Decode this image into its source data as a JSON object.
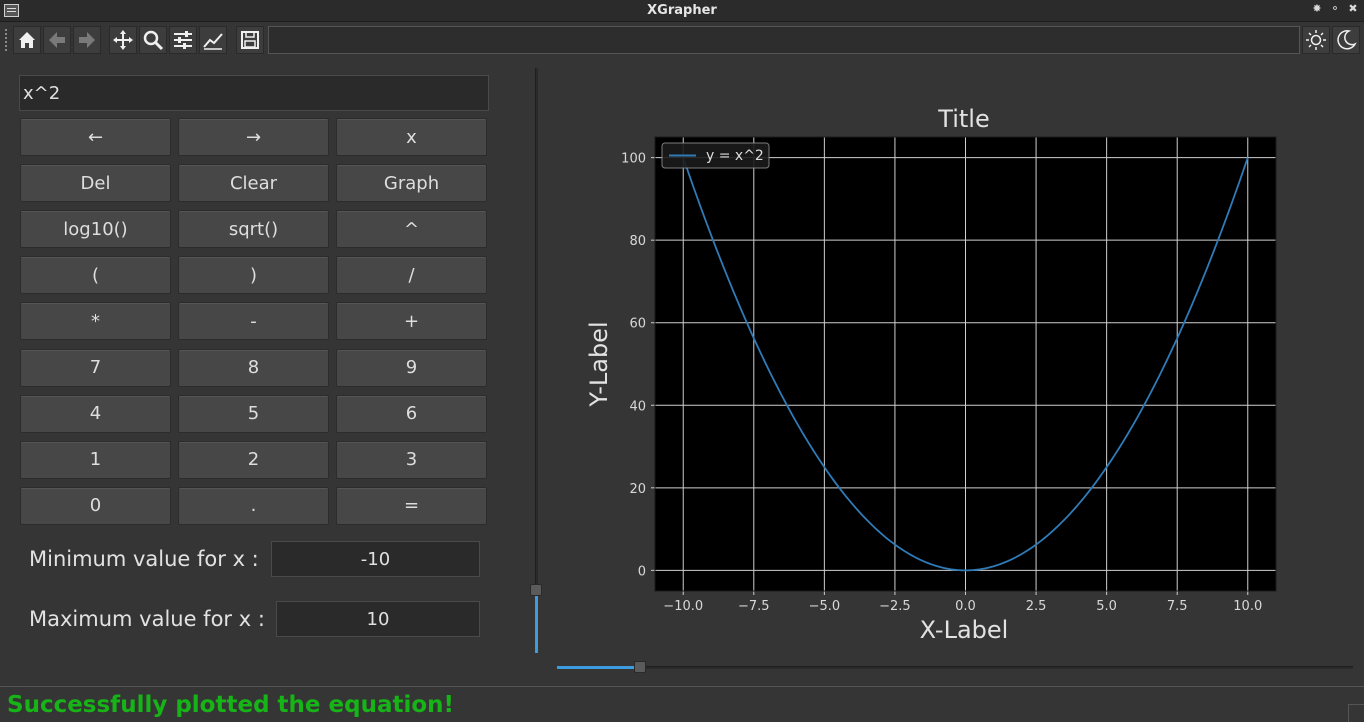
{
  "window": {
    "title": "XGrapher",
    "controls": [
      "✸",
      "⚬",
      "✖"
    ]
  },
  "toolbar": {
    "buttons": [
      {
        "name": "home-icon"
      },
      {
        "name": "back-arrow-icon"
      },
      {
        "name": "forward-arrow-icon"
      },
      {
        "name": "pan-icon"
      },
      {
        "name": "zoom-icon"
      },
      {
        "name": "subplots-config-icon"
      },
      {
        "name": "edit-axes-icon"
      },
      {
        "name": "save-icon"
      }
    ],
    "message": "",
    "theme_buttons": [
      {
        "name": "light-theme-icon"
      },
      {
        "name": "dark-theme-icon"
      }
    ]
  },
  "calculator": {
    "expression": "x^2",
    "keys": [
      "←",
      "→",
      "x",
      "Del",
      "Clear",
      "Graph",
      "log10()",
      "sqrt()",
      "^",
      "(",
      ")",
      "/",
      "*",
      "-",
      "+",
      "7",
      "8",
      "9",
      "4",
      "5",
      "6",
      "1",
      "2",
      "3",
      "0",
      ".",
      "="
    ]
  },
  "range": {
    "min_label": "Minimum value for x :",
    "min_value": "-10",
    "max_label": "Maximum value for x :",
    "max_value": "10"
  },
  "sliders": {
    "vertical_level": 0.11,
    "horizontal_level": 0.1
  },
  "chart_data": {
    "type": "line",
    "title": "Title",
    "xlabel": "X-Label",
    "ylabel": "Y-Label",
    "xlim": [
      -11,
      11
    ],
    "ylim": [
      -5,
      105
    ],
    "xticks": [
      -10.0,
      -7.5,
      -5.0,
      -2.5,
      0.0,
      2.5,
      5.0,
      7.5,
      10.0
    ],
    "xtick_labels": [
      "−10.0",
      "−7.5",
      "−5.0",
      "−2.5",
      "0.0",
      "2.5",
      "5.0",
      "7.5",
      "10.0"
    ],
    "yticks": [
      0,
      20,
      40,
      60,
      80,
      100
    ],
    "ytick_labels": [
      "0",
      "20",
      "40",
      "60",
      "80",
      "100"
    ],
    "grid": true,
    "legend_position": "top-left",
    "background": "#000000",
    "series": [
      {
        "name": "y = x^2",
        "color": "#2f7bb8",
        "x": [
          -10,
          -9,
          -8,
          -7,
          -6,
          -5,
          -4,
          -3,
          -2,
          -1,
          0,
          1,
          2,
          3,
          4,
          5,
          6,
          7,
          8,
          9,
          10
        ],
        "y": [
          100,
          81,
          64,
          49,
          36,
          25,
          16,
          9,
          4,
          1,
          0,
          1,
          4,
          9,
          16,
          25,
          36,
          49,
          64,
          81,
          100
        ]
      }
    ]
  },
  "status": {
    "message": "Successfully plotted the equation!",
    "color": "#17b417"
  }
}
